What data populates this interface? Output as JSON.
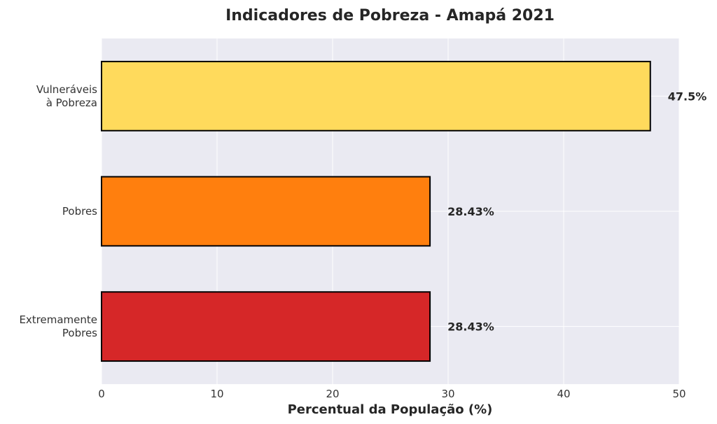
{
  "chart_data": {
    "type": "bar",
    "orientation": "horizontal",
    "title": "Indicadores de Pobreza - Amapá 2021",
    "xlabel": "Percentual da População (%)",
    "ylabel": "",
    "xlim": [
      0,
      50
    ],
    "xticks": [
      "0",
      "10",
      "20",
      "30",
      "40",
      "50"
    ],
    "grid": true,
    "categories": [
      [
        "Vulneráveis",
        "à Pobreza"
      ],
      [
        "Pobres"
      ],
      [
        "Extremamente",
        "Pobres"
      ]
    ],
    "values": [
      47.5,
      28.43,
      28.43
    ],
    "value_labels": [
      "47.5%",
      "28.43%",
      "28.43%"
    ],
    "colors": [
      "#FFDA5C",
      "#FF7F0E",
      "#D62728"
    ]
  }
}
